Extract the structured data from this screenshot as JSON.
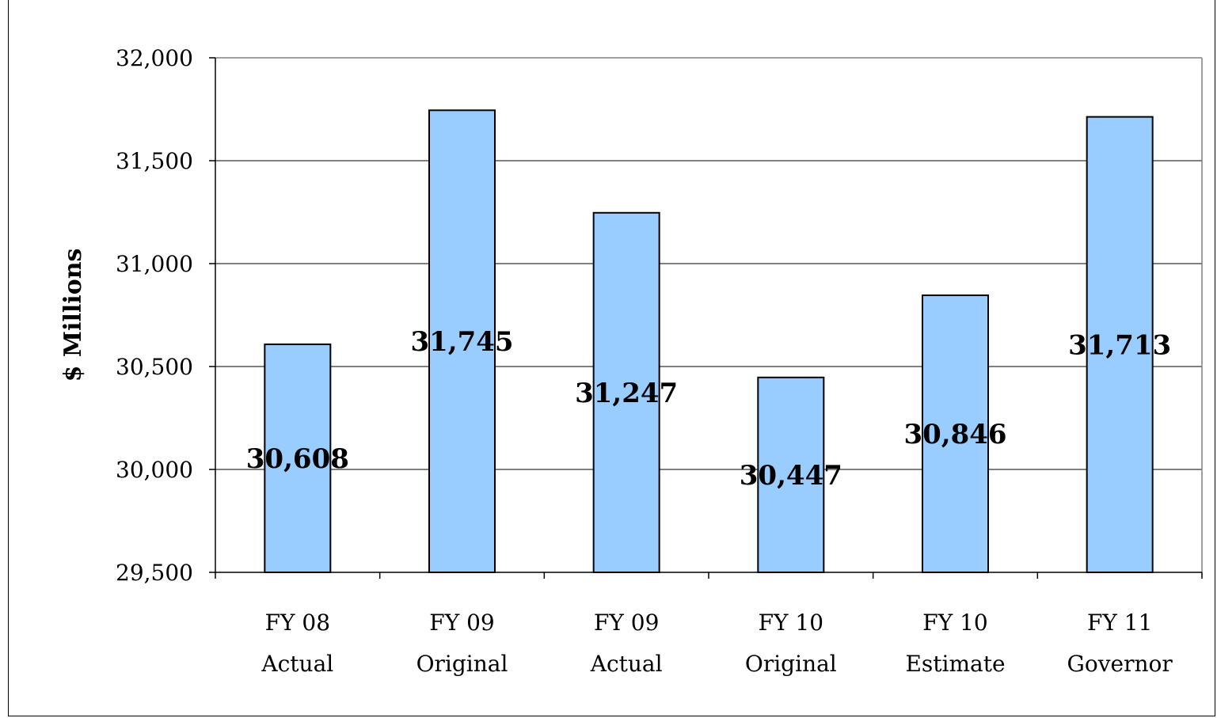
{
  "chart_data": {
    "type": "bar",
    "title": "",
    "xlabel": "",
    "ylabel": "$ Millions",
    "ylim": [
      29500,
      32000
    ],
    "yticks": [
      29500,
      30000,
      30500,
      31000,
      31500,
      32000
    ],
    "ytick_labels": [
      "29,500",
      "30,000",
      "30,500",
      "31,000",
      "31,500",
      "32,000"
    ],
    "grid": true,
    "legend": "none",
    "categories": [
      [
        "FY 08",
        "Actual"
      ],
      [
        "FY 09",
        "Original"
      ],
      [
        "FY 09",
        "Actual"
      ],
      [
        "FY 10",
        "Original"
      ],
      [
        "FY 10",
        "Estimate"
      ],
      [
        "FY 11",
        "Governor"
      ]
    ],
    "values": [
      30608,
      31745,
      31247,
      30447,
      30846,
      31713
    ],
    "value_labels": [
      "30,608",
      "31,745",
      "31,247",
      "30,447",
      "30,846",
      "31,713"
    ],
    "colors": {
      "bar_fill": "#99ccff",
      "bar_stroke": "#000000",
      "grid": "#000000",
      "plot_border": "#808080"
    }
  }
}
